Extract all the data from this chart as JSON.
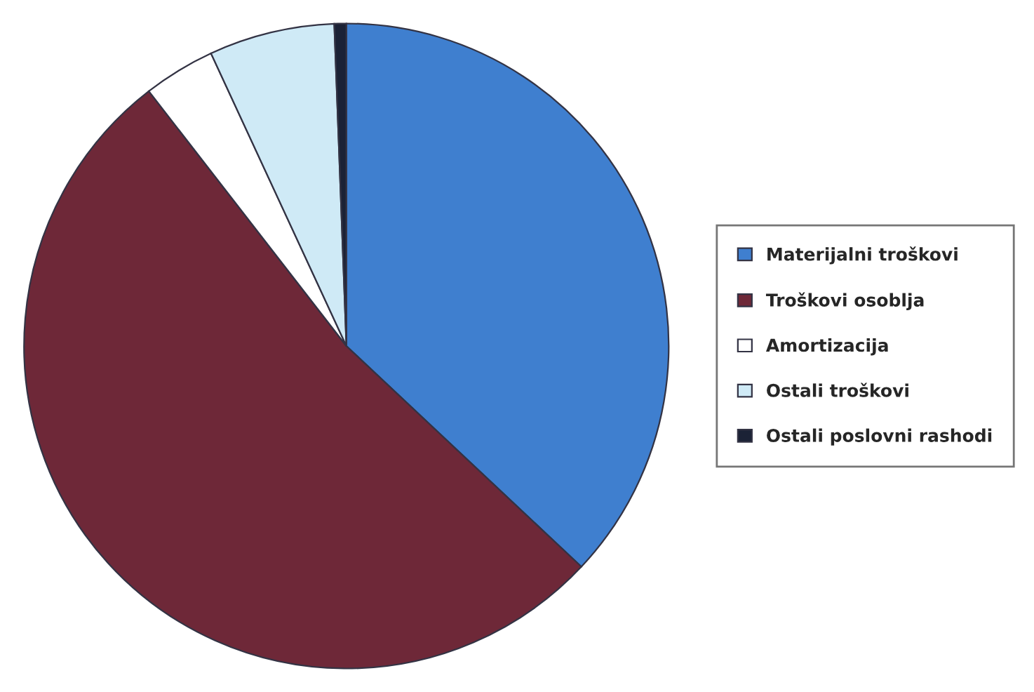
{
  "chart_data": {
    "type": "pie",
    "categories": [
      "Materijalni troškovi",
      "Troškovi osoblja",
      "Amortizacija",
      "Ostali troškovi",
      "Ostali poslovni rashodi"
    ],
    "values": [
      37,
      52.5,
      3.6,
      6.3,
      0.6
    ],
    "colors": [
      "#3f7fcf",
      "#6e2838",
      "#ffffff",
      "#cfeaf6",
      "#1b2236"
    ],
    "legend": "right"
  }
}
